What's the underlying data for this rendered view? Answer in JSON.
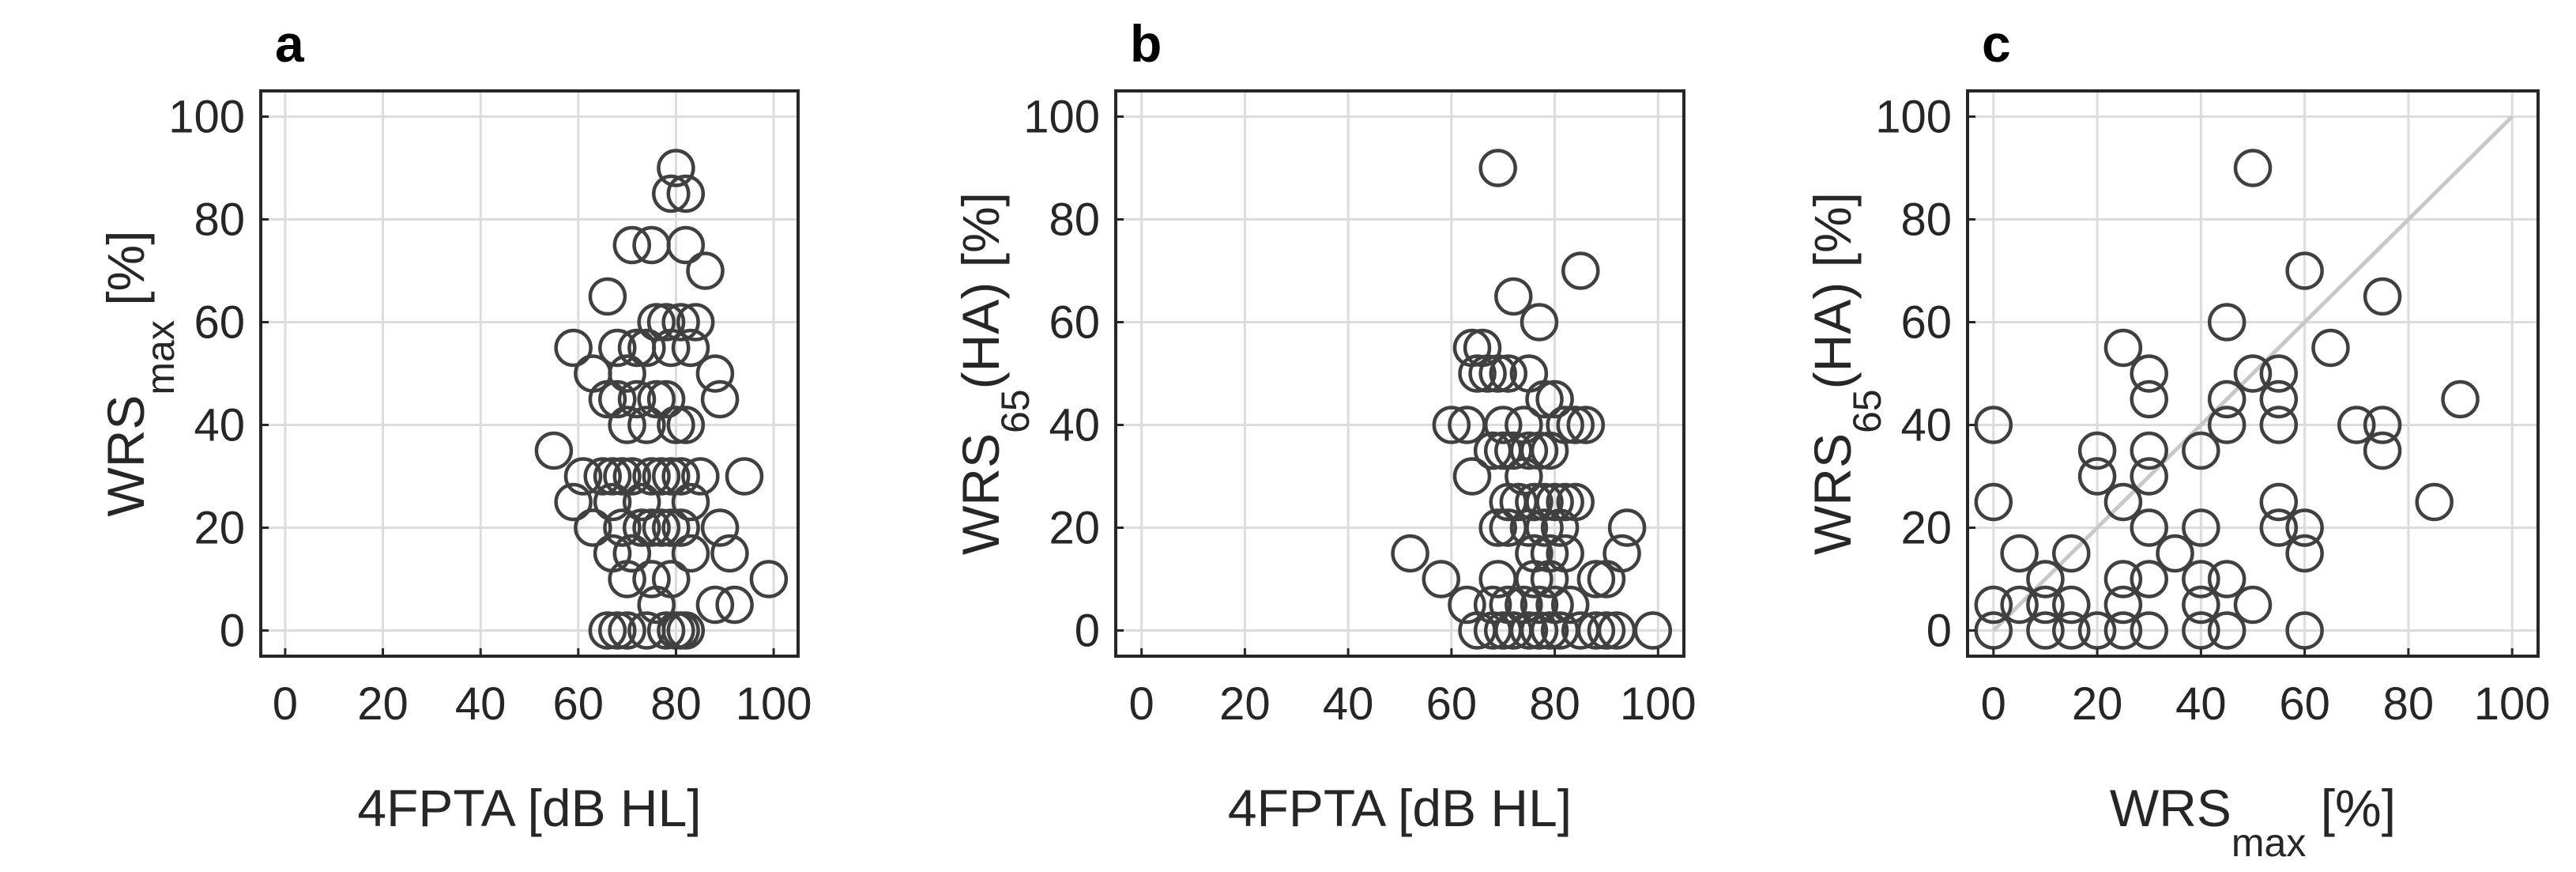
{
  "figure": {
    "marker_color": "#404040",
    "grid_color": "#dcdcdc",
    "reference_line_color": "#c8c8c8"
  },
  "chart_data": [
    {
      "type": "scatter",
      "panel": "a",
      "xlabel": "4FPTA [dB HL]",
      "ylabel": {
        "main": "WRS",
        "sub": "max",
        "tail": " [%]"
      },
      "xlim": [
        -5,
        105
      ],
      "ylim": [
        -5,
        105
      ],
      "xticks": [
        0,
        20,
        40,
        60,
        80,
        100
      ],
      "yticks": [
        0,
        20,
        40,
        60,
        80,
        100
      ],
      "grid": true,
      "points": [
        [
          80,
          90
        ],
        [
          82,
          85
        ],
        [
          79,
          85
        ],
        [
          82,
          75
        ],
        [
          86,
          70
        ],
        [
          71,
          75
        ],
        [
          75,
          75
        ],
        [
          66,
          65
        ],
        [
          59,
          55
        ],
        [
          63,
          50
        ],
        [
          68,
          55
        ],
        [
          70,
          50
        ],
        [
          72,
          55
        ],
        [
          74,
          55
        ],
        [
          76,
          60
        ],
        [
          78,
          60
        ],
        [
          79,
          55
        ],
        [
          81,
          60
        ],
        [
          83,
          55
        ],
        [
          84,
          60
        ],
        [
          88,
          50
        ],
        [
          89,
          45
        ],
        [
          66,
          45
        ],
        [
          68,
          45
        ],
        [
          70,
          40
        ],
        [
          72,
          45
        ],
        [
          74,
          40
        ],
        [
          76,
          45
        ],
        [
          78,
          45
        ],
        [
          80,
          40
        ],
        [
          82,
          40
        ],
        [
          55,
          35
        ],
        [
          61,
          30
        ],
        [
          65,
          30
        ],
        [
          67,
          30
        ],
        [
          69,
          30
        ],
        [
          71,
          30
        ],
        [
          73,
          25
        ],
        [
          75,
          30
        ],
        [
          77,
          30
        ],
        [
          79,
          30
        ],
        [
          81,
          30
        ],
        [
          83,
          25
        ],
        [
          85,
          30
        ],
        [
          94,
          30
        ],
        [
          59,
          25
        ],
        [
          63,
          20
        ],
        [
          67,
          25
        ],
        [
          69,
          20
        ],
        [
          71,
          15
        ],
        [
          73,
          20
        ],
        [
          75,
          20
        ],
        [
          77,
          20
        ],
        [
          79,
          20
        ],
        [
          81,
          20
        ],
        [
          89,
          20
        ],
        [
          67,
          15
        ],
        [
          71,
          15
        ],
        [
          75,
          10
        ],
        [
          79,
          10
        ],
        [
          83,
          15
        ],
        [
          91,
          15
        ],
        [
          70,
          10
        ],
        [
          76,
          5
        ],
        [
          88,
          5
        ],
        [
          92,
          5
        ],
        [
          99,
          10
        ],
        [
          66,
          0
        ],
        [
          68,
          0
        ],
        [
          70,
          0
        ],
        [
          74,
          0
        ],
        [
          78,
          0
        ],
        [
          80,
          0
        ],
        [
          81,
          0
        ],
        [
          82,
          0
        ]
      ]
    },
    {
      "type": "scatter",
      "panel": "b",
      "xlabel": "4FPTA [dB HL]",
      "ylabel": {
        "main": "WRS",
        "sub": "65",
        "tail": "(HA) [%]"
      },
      "xlim": [
        -5,
        105
      ],
      "ylim": [
        -5,
        105
      ],
      "xticks": [
        0,
        20,
        40,
        60,
        80,
        100
      ],
      "yticks": [
        0,
        20,
        40,
        60,
        80,
        100
      ],
      "grid": true,
      "points": [
        [
          69,
          90
        ],
        [
          85,
          70
        ],
        [
          72,
          65
        ],
        [
          77,
          60
        ],
        [
          64,
          55
        ],
        [
          66,
          55
        ],
        [
          65,
          50
        ],
        [
          67,
          50
        ],
        [
          69,
          50
        ],
        [
          71,
          50
        ],
        [
          75,
          50
        ],
        [
          60,
          40
        ],
        [
          63,
          40
        ],
        [
          70,
          40
        ],
        [
          74,
          40
        ],
        [
          78,
          45
        ],
        [
          80,
          45
        ],
        [
          82,
          40
        ],
        [
          84,
          40
        ],
        [
          86,
          40
        ],
        [
          68,
          35
        ],
        [
          70,
          35
        ],
        [
          72,
          35
        ],
        [
          75,
          35
        ],
        [
          77,
          35
        ],
        [
          79,
          35
        ],
        [
          64,
          30
        ],
        [
          74,
          30
        ],
        [
          71,
          25
        ],
        [
          73,
          25
        ],
        [
          76,
          25
        ],
        [
          78,
          25
        ],
        [
          80,
          25
        ],
        [
          82,
          25
        ],
        [
          84,
          25
        ],
        [
          69,
          20
        ],
        [
          71,
          20
        ],
        [
          75,
          20
        ],
        [
          78,
          20
        ],
        [
          81,
          20
        ],
        [
          94,
          20
        ],
        [
          93,
          15
        ],
        [
          52,
          15
        ],
        [
          76,
          15
        ],
        [
          79,
          15
        ],
        [
          82,
          15
        ],
        [
          58,
          10
        ],
        [
          69,
          10
        ],
        [
          76,
          10
        ],
        [
          79,
          10
        ],
        [
          88,
          10
        ],
        [
          90,
          10
        ],
        [
          63,
          5
        ],
        [
          68,
          5
        ],
        [
          71,
          5
        ],
        [
          74,
          5
        ],
        [
          77,
          5
        ],
        [
          80,
          5
        ],
        [
          83,
          5
        ],
        [
          65,
          0
        ],
        [
          68,
          0
        ],
        [
          70,
          0
        ],
        [
          72,
          0
        ],
        [
          75,
          0
        ],
        [
          77,
          0
        ],
        [
          79,
          0
        ],
        [
          81,
          0
        ],
        [
          85,
          0
        ],
        [
          88,
          0
        ],
        [
          90,
          0
        ],
        [
          92,
          0
        ],
        [
          99,
          0
        ]
      ]
    },
    {
      "type": "scatter",
      "panel": "c",
      "xlabel": {
        "main": "WRS",
        "sub": "max",
        "tail": " [%]"
      },
      "ylabel": {
        "main": "WRS",
        "sub": "65",
        "tail": "(HA) [%]"
      },
      "xlim": [
        -5,
        105
      ],
      "ylim": [
        -5,
        105
      ],
      "xticks": [
        0,
        20,
        40,
        60,
        80,
        100
      ],
      "yticks": [
        0,
        20,
        40,
        60,
        80,
        100
      ],
      "grid": true,
      "reference_line": {
        "from": [
          0,
          0
        ],
        "to": [
          100,
          100
        ]
      },
      "points": [
        [
          50,
          90
        ],
        [
          60,
          70
        ],
        [
          75,
          65
        ],
        [
          65,
          55
        ],
        [
          25,
          55
        ],
        [
          45,
          60
        ],
        [
          30,
          50
        ],
        [
          50,
          50
        ],
        [
          55,
          50
        ],
        [
          30,
          45
        ],
        [
          45,
          45
        ],
        [
          55,
          45
        ],
        [
          0,
          40
        ],
        [
          55,
          40
        ],
        [
          70,
          40
        ],
        [
          75,
          40
        ],
        [
          45,
          40
        ],
        [
          90,
          45
        ],
        [
          20,
          35
        ],
        [
          30,
          35
        ],
        [
          40,
          35
        ],
        [
          75,
          35
        ],
        [
          20,
          30
        ],
        [
          30,
          30
        ],
        [
          0,
          25
        ],
        [
          25,
          25
        ],
        [
          55,
          25
        ],
        [
          85,
          25
        ],
        [
          30,
          20
        ],
        [
          40,
          20
        ],
        [
          55,
          20
        ],
        [
          60,
          20
        ],
        [
          35,
          15
        ],
        [
          60,
          15
        ],
        [
          5,
          15
        ],
        [
          15,
          15
        ],
        [
          10,
          10
        ],
        [
          25,
          10
        ],
        [
          40,
          10
        ],
        [
          45,
          10
        ],
        [
          30,
          10
        ],
        [
          0,
          5
        ],
        [
          5,
          5
        ],
        [
          10,
          5
        ],
        [
          15,
          5
        ],
        [
          25,
          5
        ],
        [
          40,
          5
        ],
        [
          50,
          5
        ],
        [
          0,
          0
        ],
        [
          10,
          0
        ],
        [
          15,
          0
        ],
        [
          20,
          0
        ],
        [
          25,
          0
        ],
        [
          30,
          0
        ],
        [
          40,
          0
        ],
        [
          45,
          0
        ],
        [
          60,
          0
        ]
      ]
    }
  ]
}
